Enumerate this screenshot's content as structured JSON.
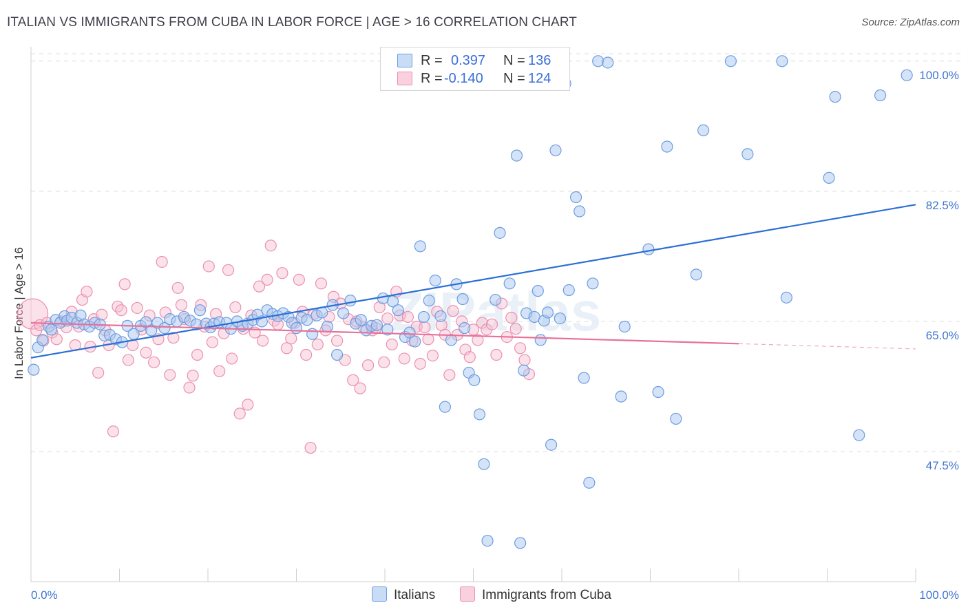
{
  "title": "ITALIAN VS IMMIGRANTS FROM CUBA IN LABOR FORCE | AGE > 16 CORRELATION CHART",
  "source": "Source: ZipAtlas.com",
  "watermark": "ZIPatlas",
  "colors": {
    "italians_fill": "#a9c8f0",
    "italians_stroke": "#6d9de0",
    "italians_line": "#2b6fd6",
    "cuba_fill": "#f7bfd0",
    "cuba_stroke": "#eb90ae",
    "cuba_line": "#e8709a",
    "tick_label": "#3f74d0",
    "grid": "#dcdcdc"
  },
  "legend": {
    "r_label": "R =",
    "n_label": "N =",
    "rows": [
      {
        "r": "0.397",
        "n": "136"
      },
      {
        "r": "-0.140",
        "n": "124"
      }
    ]
  },
  "chart_data": {
    "type": "scatter",
    "title": "ITALIAN VS IMMIGRANTS FROM CUBA IN LABOR FORCE | AGE > 16 CORRELATION CHART",
    "xlabel": "",
    "ylabel": "In Labor Force | Age > 16",
    "xlim": [
      0,
      100
    ],
    "ylim": [
      30,
      101
    ],
    "x_tick_labels": [
      "0.0%",
      "100.0%"
    ],
    "y_ticks": [
      47.5,
      65.0,
      82.5,
      100.0
    ],
    "y_tick_labels": [
      "47.5%",
      "65.0%",
      "82.5%",
      "100.0%"
    ],
    "grid": true,
    "legend_position": "top-center",
    "series": [
      {
        "name": "Italians",
        "r": 0.397,
        "n": 136,
        "trend": {
          "x": [
            0,
            100
          ],
          "y": [
            60.1,
            80.7
          ]
        },
        "points": [
          [
            0.3,
            58.5
          ],
          [
            0.8,
            61.5
          ],
          [
            1.3,
            62.5
          ],
          [
            2.0,
            64.3
          ],
          [
            2.3,
            63.9
          ],
          [
            2.8,
            65.2
          ],
          [
            3.3,
            64.8
          ],
          [
            3.8,
            65.7
          ],
          [
            4.1,
            65.1
          ],
          [
            4.6,
            65.5
          ],
          [
            5.2,
            64.8
          ],
          [
            5.6,
            65.8
          ],
          [
            6.0,
            64.6
          ],
          [
            6.6,
            64.3
          ],
          [
            7.2,
            64.8
          ],
          [
            7.8,
            64.6
          ],
          [
            8.3,
            63.1
          ],
          [
            8.9,
            63.2
          ],
          [
            9.6,
            62.6
          ],
          [
            10.3,
            62.2
          ],
          [
            10.9,
            64.4
          ],
          [
            11.6,
            63.3
          ],
          [
            12.4,
            64.4
          ],
          [
            13.0,
            64.9
          ],
          [
            13.6,
            63.8
          ],
          [
            14.3,
            64.8
          ],
          [
            15.1,
            64.1
          ],
          [
            15.7,
            65.3
          ],
          [
            16.5,
            65.0
          ],
          [
            17.3,
            65.6
          ],
          [
            18.0,
            65.1
          ],
          [
            18.7,
            64.6
          ],
          [
            19.1,
            66.5
          ],
          [
            19.8,
            64.7
          ],
          [
            20.3,
            64.2
          ],
          [
            20.7,
            64.7
          ],
          [
            21.3,
            64.9
          ],
          [
            22.1,
            64.8
          ],
          [
            22.6,
            64.0
          ],
          [
            23.3,
            65.0
          ],
          [
            23.9,
            64.4
          ],
          [
            24.5,
            64.7
          ],
          [
            25.1,
            65.2
          ],
          [
            25.6,
            65.9
          ],
          [
            26.1,
            65.0
          ],
          [
            26.7,
            66.5
          ],
          [
            27.3,
            66.0
          ],
          [
            27.9,
            65.7
          ],
          [
            28.5,
            66.1
          ],
          [
            29.1,
            65.6
          ],
          [
            29.5,
            64.8
          ],
          [
            30.0,
            64.1
          ],
          [
            30.6,
            65.5
          ],
          [
            31.2,
            65.2
          ],
          [
            31.8,
            63.3
          ],
          [
            32.3,
            65.8
          ],
          [
            32.9,
            66.2
          ],
          [
            33.5,
            64.3
          ],
          [
            34.1,
            67.2
          ],
          [
            34.6,
            60.5
          ],
          [
            35.3,
            66.1
          ],
          [
            36.1,
            67.8
          ],
          [
            36.7,
            64.7
          ],
          [
            37.3,
            65.2
          ],
          [
            37.9,
            63.8
          ],
          [
            38.5,
            64.4
          ],
          [
            39.1,
            64.5
          ],
          [
            39.8,
            68.1
          ],
          [
            40.3,
            63.9
          ],
          [
            40.9,
            67.7
          ],
          [
            41.5,
            66.5
          ],
          [
            42.3,
            62.9
          ],
          [
            42.8,
            63.5
          ],
          [
            43.4,
            62.3
          ],
          [
            44.0,
            75.1
          ],
          [
            44.4,
            65.6
          ],
          [
            45.0,
            67.8
          ],
          [
            45.7,
            70.5
          ],
          [
            46.3,
            65.7
          ],
          [
            46.8,
            53.5
          ],
          [
            47.5,
            62.5
          ],
          [
            48.1,
            70.0
          ],
          [
            48.8,
            68.0
          ],
          [
            49.0,
            64.1
          ],
          [
            49.5,
            58.1
          ],
          [
            50.1,
            57.1
          ],
          [
            50.7,
            52.5
          ],
          [
            51.2,
            45.8
          ],
          [
            51.6,
            35.5
          ],
          [
            52.5,
            67.9
          ],
          [
            53.0,
            76.9
          ],
          [
            54.1,
            70.1
          ],
          [
            54.9,
            87.3
          ],
          [
            55.3,
            35.2
          ],
          [
            55.7,
            58.4
          ],
          [
            56.0,
            66.1
          ],
          [
            56.9,
            65.6
          ],
          [
            57.3,
            69.1
          ],
          [
            57.6,
            62.5
          ],
          [
            58.0,
            65.1
          ],
          [
            58.4,
            66.2
          ],
          [
            58.8,
            48.4
          ],
          [
            59.3,
            88.0
          ],
          [
            59.8,
            65.4
          ],
          [
            60.4,
            97.0
          ],
          [
            60.8,
            69.2
          ],
          [
            61.6,
            81.7
          ],
          [
            62.0,
            79.8
          ],
          [
            62.5,
            57.4
          ],
          [
            63.1,
            43.3
          ],
          [
            63.5,
            70.1
          ],
          [
            64.1,
            100.0
          ],
          [
            65.2,
            99.8
          ],
          [
            66.7,
            54.9
          ],
          [
            67.1,
            64.3
          ],
          [
            69.8,
            74.7
          ],
          [
            70.9,
            55.5
          ],
          [
            71.9,
            88.5
          ],
          [
            72.9,
            51.9
          ],
          [
            75.2,
            71.3
          ],
          [
            76.0,
            90.7
          ],
          [
            79.1,
            100.0
          ],
          [
            81.0,
            87.5
          ],
          [
            84.9,
            100.0
          ],
          [
            85.4,
            68.2
          ],
          [
            90.2,
            84.3
          ],
          [
            90.9,
            95.2
          ],
          [
            93.6,
            49.7
          ],
          [
            96.0,
            95.4
          ],
          [
            99.0,
            98.1
          ]
        ]
      },
      {
        "name": "Immigrants from Cuba",
        "r": -0.14,
        "n": 124,
        "trend": {
          "x": [
            0,
            80
          ],
          "y": [
            64.8,
            62.0
          ]
        },
        "trend_dashed": {
          "x": [
            80,
            100
          ],
          "y": [
            62.0,
            61.3
          ]
        },
        "points": [
          [
            0.2,
            66.0
          ],
          [
            0.6,
            63.8
          ],
          [
            1.0,
            64.5
          ],
          [
            1.4,
            62.4
          ],
          [
            1.8,
            64.8
          ],
          [
            2.4,
            63.5
          ],
          [
            2.9,
            62.6
          ],
          [
            3.4,
            65.0
          ],
          [
            4.0,
            64.2
          ],
          [
            4.6,
            66.3
          ],
          [
            5.0,
            61.8
          ],
          [
            5.4,
            64.3
          ],
          [
            5.8,
            67.9
          ],
          [
            6.3,
            69.0
          ],
          [
            6.7,
            61.6
          ],
          [
            7.1,
            65.3
          ],
          [
            7.6,
            58.1
          ],
          [
            8.0,
            65.9
          ],
          [
            8.4,
            63.8
          ],
          [
            8.8,
            61.8
          ],
          [
            9.3,
            50.2
          ],
          [
            9.8,
            67.0
          ],
          [
            10.2,
            66.5
          ],
          [
            10.6,
            70.0
          ],
          [
            11.0,
            59.8
          ],
          [
            11.5,
            61.8
          ],
          [
            12.0,
            66.8
          ],
          [
            12.5,
            63.9
          ],
          [
            13.0,
            60.8
          ],
          [
            13.4,
            65.8
          ],
          [
            13.9,
            59.5
          ],
          [
            14.4,
            62.6
          ],
          [
            14.8,
            73.0
          ],
          [
            15.2,
            66.2
          ],
          [
            15.7,
            57.8
          ],
          [
            16.1,
            62.8
          ],
          [
            16.6,
            69.5
          ],
          [
            17.0,
            67.2
          ],
          [
            17.4,
            65.3
          ],
          [
            17.9,
            56.1
          ],
          [
            18.3,
            57.7
          ],
          [
            18.8,
            60.5
          ],
          [
            19.2,
            67.2
          ],
          [
            19.6,
            64.3
          ],
          [
            20.1,
            72.4
          ],
          [
            20.5,
            62.2
          ],
          [
            20.9,
            66.0
          ],
          [
            21.3,
            58.3
          ],
          [
            21.8,
            63.4
          ],
          [
            22.3,
            71.9
          ],
          [
            22.7,
            60.0
          ],
          [
            23.1,
            66.9
          ],
          [
            23.6,
            52.6
          ],
          [
            24.0,
            64.0
          ],
          [
            24.5,
            53.8
          ],
          [
            24.9,
            65.8
          ],
          [
            25.3,
            63.5
          ],
          [
            25.8,
            69.7
          ],
          [
            26.2,
            62.4
          ],
          [
            26.7,
            70.6
          ],
          [
            27.1,
            75.2
          ],
          [
            27.5,
            65.1
          ],
          [
            27.9,
            64.6
          ],
          [
            28.4,
            71.5
          ],
          [
            28.9,
            61.4
          ],
          [
            29.4,
            62.7
          ],
          [
            29.8,
            64.8
          ],
          [
            30.3,
            70.6
          ],
          [
            30.7,
            66.3
          ],
          [
            31.1,
            60.5
          ],
          [
            31.6,
            48.0
          ],
          [
            32.0,
            66.0
          ],
          [
            32.4,
            61.9
          ],
          [
            32.8,
            70.1
          ],
          [
            33.3,
            63.8
          ],
          [
            33.7,
            65.6
          ],
          [
            34.2,
            68.3
          ],
          [
            34.6,
            62.4
          ],
          [
            35.0,
            67.4
          ],
          [
            35.5,
            59.8
          ],
          [
            35.9,
            65.3
          ],
          [
            36.4,
            57.1
          ],
          [
            36.8,
            65.0
          ],
          [
            37.2,
            56.0
          ],
          [
            37.6,
            64.2
          ],
          [
            38.1,
            59.1
          ],
          [
            38.6,
            63.8
          ],
          [
            39.0,
            64.1
          ],
          [
            39.4,
            66.9
          ],
          [
            39.9,
            59.5
          ],
          [
            40.3,
            65.4
          ],
          [
            40.8,
            61.9
          ],
          [
            41.3,
            69.0
          ],
          [
            41.7,
            65.8
          ],
          [
            42.2,
            60.0
          ],
          [
            42.6,
            65.6
          ],
          [
            43.1,
            62.4
          ],
          [
            43.6,
            64.3
          ],
          [
            44.0,
            59.3
          ],
          [
            44.5,
            64.2
          ],
          [
            44.9,
            62.6
          ],
          [
            45.4,
            60.4
          ],
          [
            45.9,
            66.3
          ],
          [
            46.4,
            64.5
          ],
          [
            46.8,
            63.2
          ],
          [
            47.3,
            57.8
          ],
          [
            47.7,
            66.4
          ],
          [
            48.2,
            63.2
          ],
          [
            48.7,
            65.0
          ],
          [
            49.1,
            61.2
          ],
          [
            49.6,
            60.2
          ],
          [
            50.0,
            63.9
          ],
          [
            50.5,
            62.5
          ],
          [
            51.0,
            64.8
          ],
          [
            51.5,
            63.9
          ],
          [
            52.1,
            64.6
          ],
          [
            52.6,
            60.5
          ],
          [
            53.2,
            67.4
          ],
          [
            53.8,
            62.9
          ],
          [
            54.3,
            65.5
          ],
          [
            54.8,
            64.0
          ],
          [
            55.3,
            61.4
          ],
          [
            55.8,
            59.8
          ],
          [
            56.3,
            57.9
          ]
        ]
      }
    ]
  },
  "bottom_legend": [
    "Italians",
    "Immigrants from Cuba"
  ]
}
